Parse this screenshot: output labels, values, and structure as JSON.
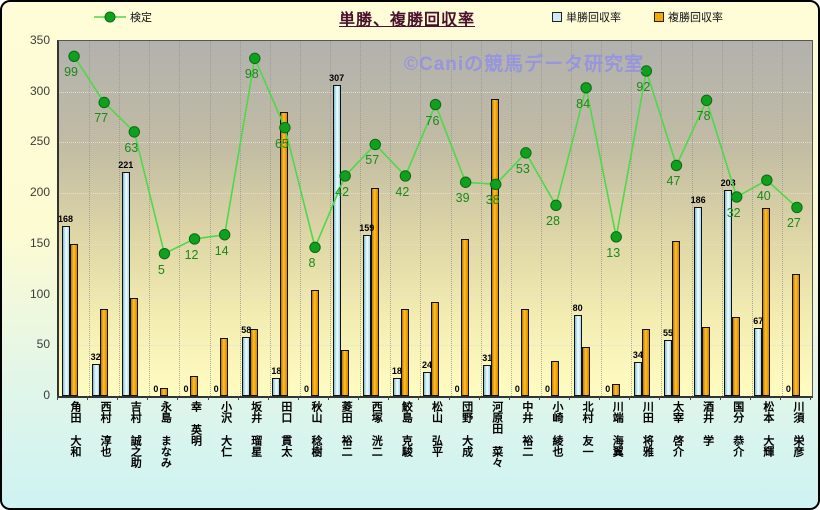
{
  "header": {
    "title": "単勝、複勝回収率",
    "legend": {
      "line_label": "検定",
      "bar1_label": "単勝回収率",
      "bar2_label": "複勝回収率"
    }
  },
  "watermark": "©Caniの競馬データ研究室",
  "colors": {
    "win_bar": "#cdeaf6",
    "place_bar": "#f5a800",
    "line": "#4fd84a",
    "marker": "#0fa01e",
    "value_label_green": "#188a18",
    "title": "#4a102c",
    "watermark": "#8f8fe8"
  },
  "chart_data": {
    "type": "bar",
    "subtype": "bar+line combo",
    "title": "単勝、複勝回収率",
    "categories": [
      "角田 大和",
      "西村 淳也",
      "吉村 誠之助",
      "永島 まなみ",
      "幸 英明",
      "小沢 大仁",
      "坂井 瑠星",
      "田口 貫太",
      "秋山 稔樹",
      "菱田 裕二",
      "西塚 洸二",
      "鮫島 克駿",
      "松山 弘平",
      "団野 大成",
      "河原田 菜々",
      "中井 裕二",
      "小崎 綾也",
      "北村 友一",
      "川端 海翼",
      "川田 将雅",
      "太宰 啓介",
      "酒井 学",
      "国分 恭介",
      "松本 大輝",
      "川須 栄彦"
    ],
    "series": [
      {
        "name": "検定",
        "type": "line",
        "values": [
          99,
          77,
          63,
          5,
          12,
          14,
          98,
          65,
          8,
          42,
          57,
          42,
          76,
          39,
          38,
          53,
          28,
          84,
          13,
          92,
          47,
          78,
          32,
          40,
          27
        ],
        "labels_shown": true
      },
      {
        "name": "単勝回収率",
        "type": "bar",
        "values": [
          168,
          32,
          221,
          0,
          0,
          0,
          58,
          18,
          0,
          307,
          159,
          18,
          24,
          0,
          31,
          0,
          0,
          80,
          0,
          34,
          55,
          186,
          203,
          67,
          0
        ],
        "labels_shown": true
      },
      {
        "name": "複勝回収率",
        "type": "bar",
        "values": [
          150,
          86,
          97,
          8,
          20,
          57,
          66,
          280,
          105,
          45,
          205,
          86,
          93,
          155,
          293,
          86,
          35,
          48,
          12,
          66,
          153,
          68,
          78,
          185,
          120
        ],
        "labels_shown": false,
        "note": "heights estimated from pixels; no data labels printed"
      }
    ],
    "ylim": [
      0,
      350
    ],
    "y_ticks": [
      "350",
      "300",
      "250",
      "200",
      "150",
      "100",
      "50",
      "0"
    ],
    "grid": true,
    "legend_position": "top",
    "line_axis_mapping": {
      "offset": 130,
      "scale": 2.07,
      "note": "line is plotted on hidden secondary axis: left-axis position = offset + scale * value"
    }
  }
}
